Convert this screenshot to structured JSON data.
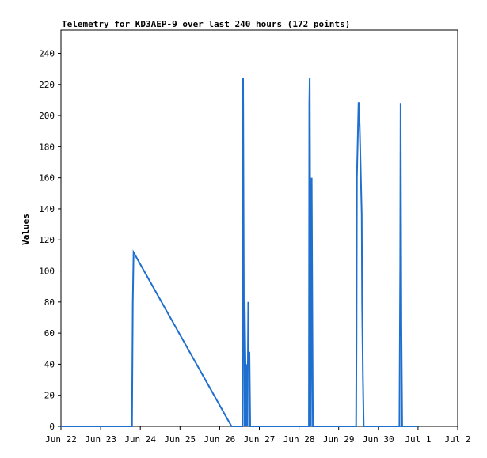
{
  "chart_data": {
    "type": "line",
    "title": "Telemetry for KD3AEP-9 over last 240 hours (172 points)",
    "xlabel": "",
    "ylabel": "Values",
    "xlim": [
      "Jun 22",
      "Jul 2"
    ],
    "ylim": [
      0,
      255
    ],
    "grid": false,
    "line_color": "#1f6fcf",
    "x_ticks": [
      "Jun 22",
      "Jun 23",
      "Jun 24",
      "Jun 25",
      "Jun 26",
      "Jun 27",
      "Jun 28",
      "Jun 29",
      "Jun 30",
      "Jul 1",
      "Jul 2"
    ],
    "y_ticks": [
      0,
      20,
      40,
      60,
      80,
      100,
      120,
      140,
      160,
      180,
      200,
      220,
      240
    ],
    "series": [
      {
        "x_unit": "days since Jun 22 00:00",
        "x": [
          0.0,
          1.79,
          1.8,
          1.81,
          1.83,
          4.3,
          4.57,
          4.58,
          4.59,
          4.62,
          4.63,
          4.67,
          4.68,
          4.7,
          4.72,
          4.73,
          4.75,
          4.77,
          6.25,
          6.26,
          6.27,
          6.29,
          6.3,
          6.32,
          6.35,
          6.36,
          7.44,
          7.45,
          7.46,
          7.5,
          7.51,
          7.53,
          7.58,
          7.59,
          7.61,
          7.63,
          7.65,
          7.66,
          7.68,
          7.7,
          7.71,
          8.53,
          8.55,
          8.56,
          8.58,
          8.6,
          8.62,
          8.64,
          9.0
        ],
        "y": [
          0,
          0,
          40,
          80,
          112,
          0,
          0,
          112,
          224,
          0,
          80,
          0,
          40,
          0,
          80,
          40,
          48,
          0,
          0,
          208,
          224,
          80,
          0,
          160,
          0,
          0,
          0,
          56,
          160,
          208,
          208,
          192,
          136,
          80,
          32,
          0,
          0,
          0,
          0,
          0,
          0,
          0,
          104,
          208,
          64,
          0,
          0,
          0,
          0
        ]
      }
    ]
  }
}
